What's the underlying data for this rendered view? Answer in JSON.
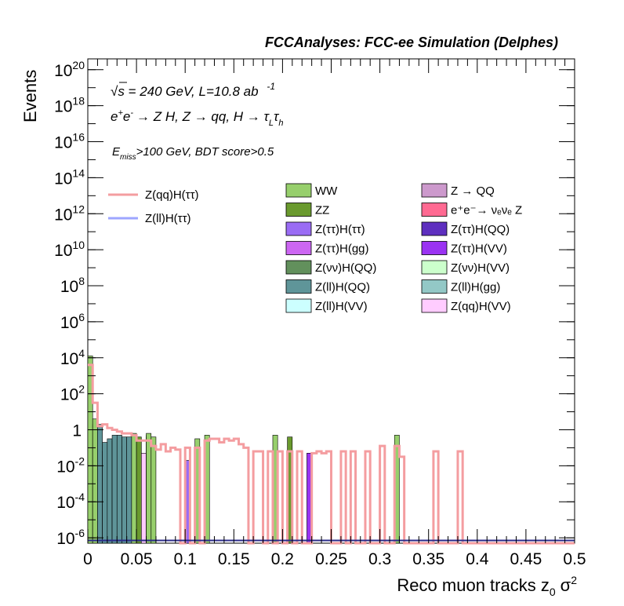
{
  "chart_data": {
    "type": "histogram",
    "title": "FCCAnalyses: FCC-ee Simulation (Delphes)",
    "annotations": {
      "energy": "√s = 240 GeV, L=10.8 ab",
      "energy_exp": "-1",
      "process_prefix": "e",
      "process_main": "→ Z H, Z  → qq, H  → τ",
      "process_tail": "τ",
      "sub_L": "L",
      "sub_h": "h",
      "cut_E": "E",
      "cut_sub": "miss",
      "cut_rest": ">100 GeV, BDT score>0.5"
    },
    "xlabel_main": "Reco muon tracks z",
    "xlabel_sub": "0",
    "xlabel_tail": "σ",
    "xlabel_sup": "2",
    "ylabel": "Events",
    "xlim": [
      0,
      0.5
    ],
    "ylog": true,
    "ylim_exp": [
      -6.3,
      20.6
    ],
    "x_ticks": [
      "0",
      "0.05",
      "0.1",
      "0.15",
      "0.2",
      "0.25",
      "0.3",
      "0.35",
      "0.4",
      "0.45",
      "0.5"
    ],
    "y_ticks": [
      {
        "base": "10",
        "exp": "20",
        "v": 20
      },
      {
        "base": "10",
        "exp": "18",
        "v": 18
      },
      {
        "base": "10",
        "exp": "16",
        "v": 16
      },
      {
        "base": "10",
        "exp": "14",
        "v": 14
      },
      {
        "base": "10",
        "exp": "12",
        "v": 12
      },
      {
        "base": "10",
        "exp": "10",
        "v": 10
      },
      {
        "base": "10",
        "exp": "8",
        "v": 8
      },
      {
        "base": "10",
        "exp": "6",
        "v": 6
      },
      {
        "base": "10",
        "exp": "4",
        "v": 4
      },
      {
        "base": "10",
        "exp": "2",
        "v": 2
      },
      {
        "base": "1",
        "exp": "",
        "v": 0
      },
      {
        "base": "10",
        "exp": "-2",
        "v": -2
      },
      {
        "base": "10",
        "exp": "-4",
        "v": -4
      },
      {
        "base": "10",
        "exp": "-6",
        "v": -6
      }
    ],
    "legend_signal": [
      {
        "name": "Z(qq)H(ττ)",
        "color": "#f49da0"
      },
      {
        "name": "Z(ll)H(ττ)",
        "color": "#9ea6ff"
      }
    ],
    "legend_backgrounds": [
      {
        "name": "WW",
        "color": "#97cf6c"
      },
      {
        "name": "Z → QQ",
        "color": "#cc99cc"
      },
      {
        "name": "ZZ",
        "color": "#6a9a2e"
      },
      {
        "name": "e⁺e⁻→ νₑνₑ Z",
        "color": "#ff6a92"
      },
      {
        "name": "Z(ττ)H(ττ)",
        "color": "#9a6cf4"
      },
      {
        "name": "Z(ττ)H(QQ)",
        "color": "#5e2fbf"
      },
      {
        "name": "Z(ττ)H(gg)",
        "color": "#cc66f2"
      },
      {
        "name": "Z(ττ)H(VV)",
        "color": "#9a33f2"
      },
      {
        "name": "Z(νν)H(QQ)",
        "color": "#62905c"
      },
      {
        "name": "Z(νν)H(VV)",
        "color": "#ccffcc"
      },
      {
        "name": "Z(ll)H(QQ)",
        "color": "#5f9599"
      },
      {
        "name": "Z(ll)H(gg)",
        "color": "#93c8c6"
      },
      {
        "name": "Z(ll)H(VV)",
        "color": "#ccffff"
      },
      {
        "name": "Z(qq)H(VV)",
        "color": "#ffccff"
      }
    ],
    "bin_width": 0.005,
    "stack_bars": [
      {
        "x": 0.0,
        "layers": [
          [
            "#9a33f2",
            -0.5
          ],
          [
            "#5e2fbf",
            -0.2
          ],
          [
            "#62905c",
            1.5
          ],
          [
            "#97cf6c",
            4.1
          ]
        ]
      },
      {
        "x": 0.005,
        "layers": [
          [
            "#cc66f2",
            -1.0
          ],
          [
            "#5f9599",
            0.3
          ],
          [
            "#97cf6c",
            0.6
          ]
        ]
      },
      {
        "x": 0.01,
        "layers": [
          [
            "#9a6cf4",
            -1.0
          ],
          [
            "#5f9599",
            0.3
          ]
        ]
      },
      {
        "x": 0.015,
        "layers": [
          [
            "#5e2fbf",
            -1.2
          ],
          [
            "#5f9599",
            -0.7
          ]
        ]
      },
      {
        "x": 0.02,
        "layers": [
          [
            "#9a6cf4",
            -0.9
          ],
          [
            "#5f9599",
            -0.5
          ]
        ]
      },
      {
        "x": 0.025,
        "layers": [
          [
            "#5e2fbf",
            -0.6
          ],
          [
            "#5f9599",
            -0.3
          ]
        ]
      },
      {
        "x": 0.03,
        "layers": [
          [
            "#62905c",
            -0.5
          ],
          [
            "#5f9599",
            -0.3
          ]
        ]
      },
      {
        "x": 0.035,
        "layers": [
          [
            "#5e2fbf",
            -0.9
          ],
          [
            "#5f9599",
            -0.4
          ]
        ]
      },
      {
        "x": 0.04,
        "layers": [
          [
            "#5f9599",
            -0.4
          ]
        ]
      },
      {
        "x": 0.045,
        "layers": [
          [
            "#97cf6c",
            -0.2
          ]
        ]
      },
      {
        "x": 0.05,
        "layers": [
          [
            "#6a9a2e",
            -0.4
          ]
        ]
      },
      {
        "x": 0.055,
        "layers": [
          [
            "#ffccff",
            -1.3
          ]
        ]
      },
      {
        "x": 0.06,
        "layers": [
          [
            "#62905c",
            -0.3
          ]
        ]
      },
      {
        "x": 0.065,
        "layers": [
          [
            "#97cf6c",
            -0.4
          ]
        ]
      },
      {
        "x": 0.06,
        "layers": [
          [
            "#6a9a2e",
            -0.4
          ],
          [
            "#97cf6c",
            -0.2
          ]
        ]
      },
      {
        "x": 0.1,
        "layers": [
          [
            "#9a6cf4",
            -1.7
          ]
        ]
      },
      {
        "x": 0.11,
        "layers": [
          [
            "#97cf6c",
            -0.5
          ]
        ]
      },
      {
        "x": 0.12,
        "layers": [
          [
            "#97cf6c",
            -0.3
          ]
        ]
      },
      {
        "x": 0.19,
        "layers": [
          [
            "#97cf6c",
            -0.3
          ]
        ]
      },
      {
        "x": 0.205,
        "layers": [
          [
            "#6a9a2e",
            -0.4
          ]
        ]
      },
      {
        "x": 0.225,
        "layers": [
          [
            "#9a33f2",
            -1.3
          ]
        ]
      },
      {
        "x": 0.315,
        "layers": [
          [
            "#97cf6c",
            -0.3
          ]
        ]
      }
    ],
    "signal_line_steps": [
      [
        0.0,
        3.6
      ],
      [
        0.005,
        1.5
      ],
      [
        0.01,
        0.2
      ],
      [
        0.015,
        0.3
      ],
      [
        0.02,
        0.1
      ],
      [
        0.025,
        0.0
      ],
      [
        0.03,
        -0.1
      ],
      [
        0.035,
        -0.2
      ],
      [
        0.045,
        -0.3
      ],
      [
        0.05,
        -0.6
      ],
      [
        0.06,
        -0.6
      ],
      [
        0.065,
        -0.9
      ],
      [
        0.07,
        -1.1
      ],
      [
        0.075,
        -0.8
      ],
      [
        0.08,
        -1.2
      ],
      [
        0.085,
        -1.0
      ],
      [
        0.09,
        -1.1
      ],
      [
        0.095,
        -6.3
      ],
      [
        0.1,
        -1.0
      ],
      [
        0.105,
        -6.3
      ],
      [
        0.11,
        -1.0
      ],
      [
        0.115,
        -6.3
      ],
      [
        0.12,
        -0.6
      ],
      [
        0.125,
        -0.5
      ],
      [
        0.13,
        -0.5
      ],
      [
        0.135,
        -0.7
      ],
      [
        0.14,
        -0.5
      ],
      [
        0.145,
        -0.6
      ],
      [
        0.15,
        -0.5
      ],
      [
        0.155,
        -0.8
      ],
      [
        0.16,
        -1.0
      ],
      [
        0.165,
        -6.3
      ],
      [
        0.17,
        -1.2
      ],
      [
        0.175,
        -1.2
      ],
      [
        0.18,
        -6.3
      ],
      [
        0.185,
        -1.2
      ],
      [
        0.19,
        -6.3
      ],
      [
        0.195,
        -1.2
      ],
      [
        0.2,
        -6.3
      ],
      [
        0.205,
        -1.2
      ],
      [
        0.21,
        -6.3
      ],
      [
        0.215,
        -1.2
      ],
      [
        0.22,
        -6.3
      ],
      [
        0.23,
        -1.3
      ],
      [
        0.235,
        -1.2
      ],
      [
        0.24,
        -1.3
      ],
      [
        0.245,
        -1.2
      ],
      [
        0.25,
        -6.3
      ],
      [
        0.26,
        -1.2
      ],
      [
        0.265,
        -6.3
      ],
      [
        0.27,
        -1.2
      ],
      [
        0.275,
        -6.3
      ],
      [
        0.285,
        -1.2
      ],
      [
        0.29,
        -6.3
      ],
      [
        0.3,
        -0.9
      ],
      [
        0.305,
        -6.3
      ],
      [
        0.315,
        -0.9
      ],
      [
        0.32,
        -1.5
      ],
      [
        0.325,
        -6.3
      ],
      [
        0.355,
        -1.2
      ],
      [
        0.36,
        -6.3
      ],
      [
        0.38,
        -1.2
      ],
      [
        0.385,
        -6.3
      ],
      [
        0.5,
        -6.3
      ]
    ],
    "signal2_line": [
      [
        0.0,
        -6.15
      ],
      [
        0.5,
        -6.15
      ]
    ]
  }
}
